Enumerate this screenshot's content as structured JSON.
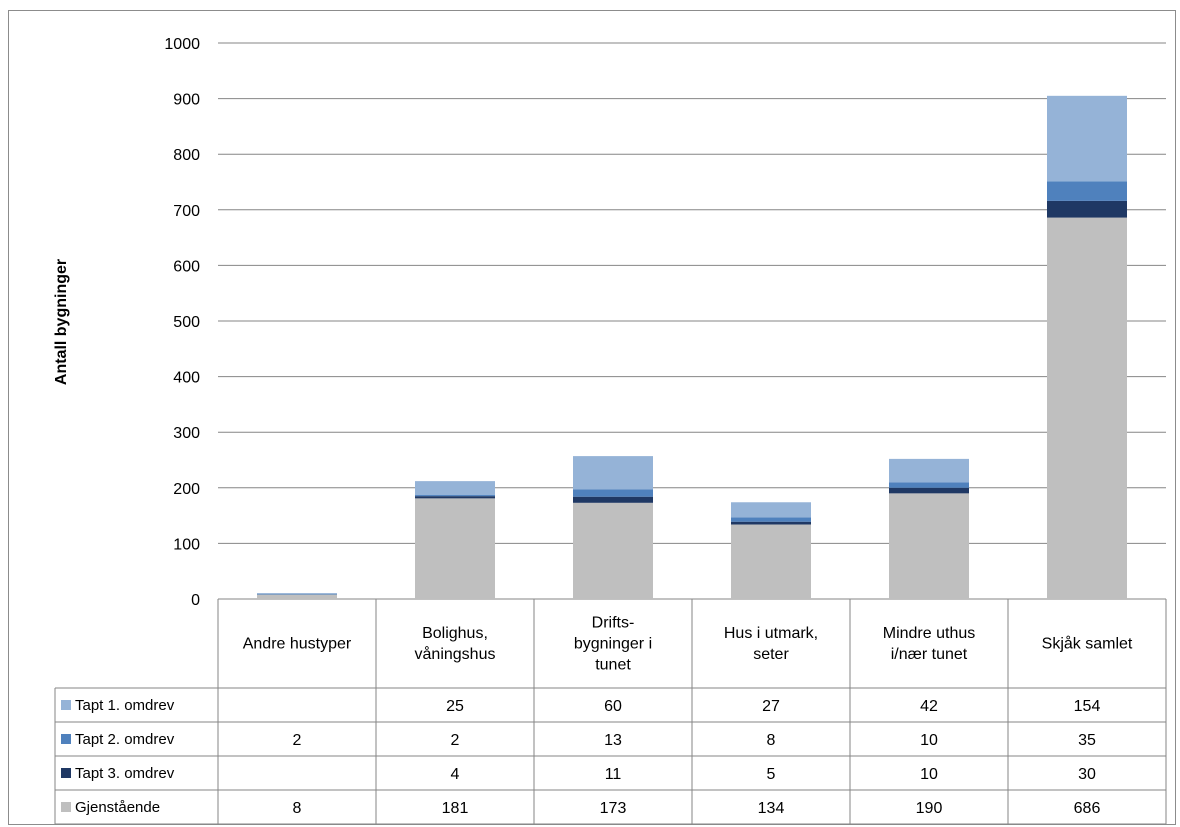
{
  "chart_data": {
    "type": "bar",
    "stacked": true,
    "ylabel": "Antall bygninger",
    "ylim": [
      0,
      1000
    ],
    "yticks": [
      0,
      100,
      200,
      300,
      400,
      500,
      600,
      700,
      800,
      900,
      1000
    ],
    "grid": true,
    "legend": "data-table",
    "categories": [
      [
        "Andre hustyper"
      ],
      [
        "Bolighus,",
        "våningshus"
      ],
      [
        "Drifts-",
        "bygninger i",
        "tunet"
      ],
      [
        "Hus i utmark,",
        "seter"
      ],
      [
        "Mindre uthus",
        "i/nær tunet"
      ],
      [
        "Skjåk samlet"
      ]
    ],
    "series": [
      {
        "name": "Gjenstående",
        "color": "#bfbfbf",
        "values": [
          8,
          181,
          173,
          134,
          190,
          686
        ]
      },
      {
        "name": "Tapt 3. omdrev",
        "color": "#1f3864",
        "values": [
          null,
          4,
          11,
          5,
          10,
          30
        ]
      },
      {
        "name": "Tapt 2. omdrev",
        "color": "#4f81bd",
        "values": [
          2,
          2,
          13,
          8,
          10,
          35
        ]
      },
      {
        "name": "Tapt 1. omdrev",
        "color": "#95b3d7",
        "values": [
          null,
          25,
          60,
          27,
          42,
          154
        ]
      }
    ],
    "table_row_order": [
      "Tapt 1. omdrev",
      "Tapt 2. omdrev",
      "Tapt 3. omdrev",
      "Gjenstående"
    ]
  }
}
